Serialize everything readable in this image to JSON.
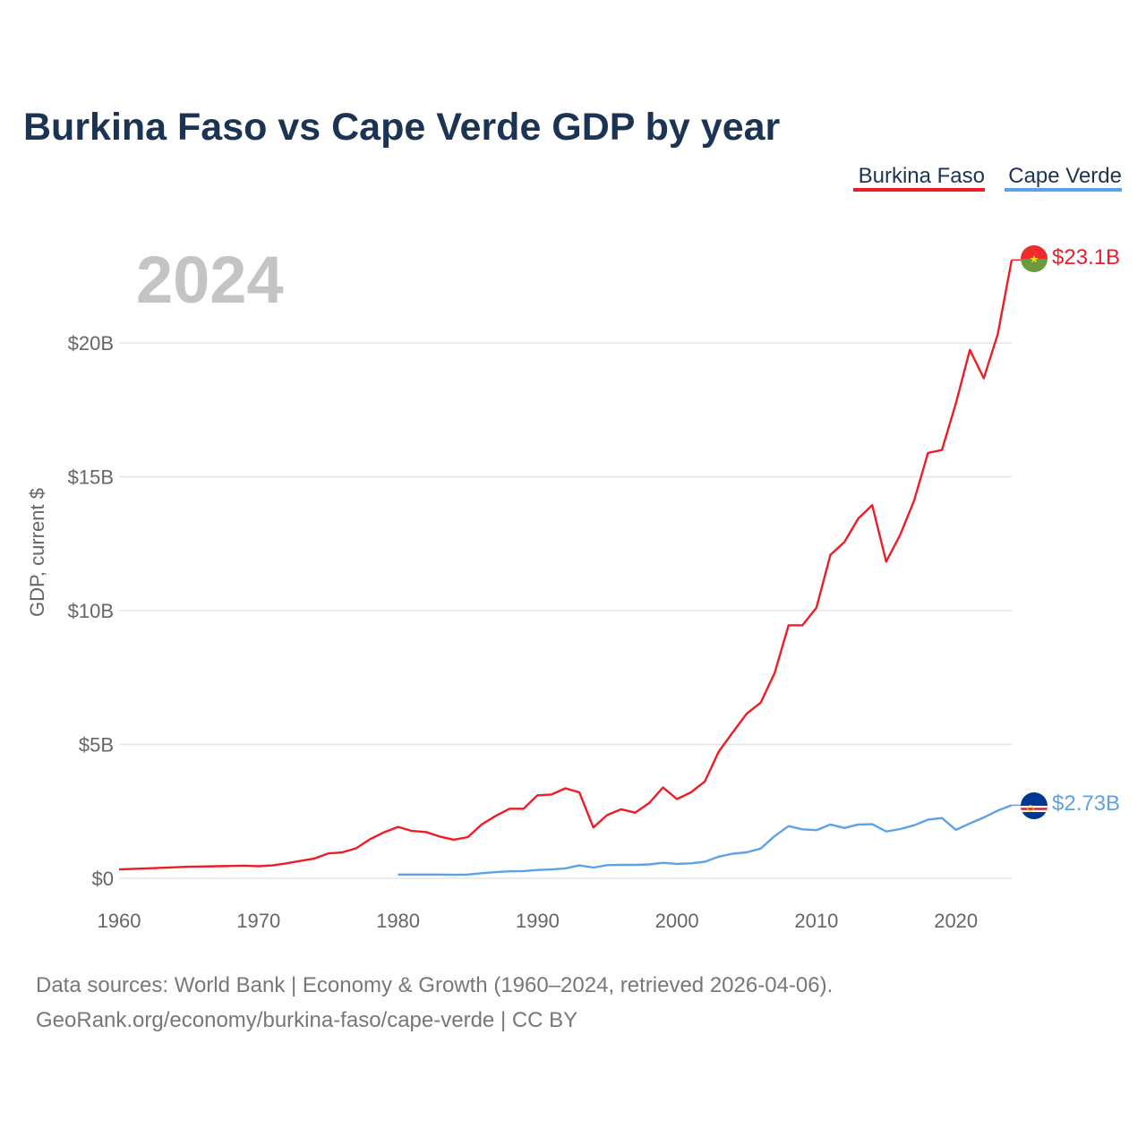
{
  "colors": {
    "burkina": "#ee1c25",
    "cape": "#5ba3e4",
    "title": "#1c3454"
  },
  "chart_data": {
    "type": "line",
    "title": "Burkina Faso vs Cape Verde GDP by year",
    "xlabel": "",
    "ylabel": "GDP, current $",
    "current_year": "2024",
    "xlim": [
      1960,
      2024
    ],
    "ylim": [
      0,
      23.1
    ],
    "x_ticks": [
      1960,
      1970,
      1980,
      1990,
      2000,
      2010,
      2020
    ],
    "x_tick_labels": [
      "1960",
      "1970",
      "1980",
      "1990",
      "2000",
      "2010",
      "2020"
    ],
    "y_ticks": [
      0,
      5,
      10,
      15,
      20
    ],
    "y_tick_labels": [
      "$0",
      "$5B",
      "$10B",
      "$15B",
      "$20B"
    ],
    "units": "billions of current US$",
    "series": [
      {
        "name": "Burkina Faso",
        "color": "#ee1c25",
        "end_label": "$23.1B",
        "x": [
          1960,
          1961,
          1962,
          1963,
          1964,
          1965,
          1966,
          1967,
          1968,
          1969,
          1970,
          1971,
          1972,
          1973,
          1974,
          1975,
          1976,
          1977,
          1978,
          1979,
          1980,
          1981,
          1982,
          1983,
          1984,
          1985,
          1986,
          1987,
          1988,
          1989,
          1990,
          1991,
          1992,
          1993,
          1994,
          1995,
          1996,
          1997,
          1998,
          1999,
          2000,
          2001,
          2002,
          2003,
          2004,
          2005,
          2006,
          2007,
          2008,
          2009,
          2010,
          2011,
          2012,
          2013,
          2014,
          2015,
          2016,
          2017,
          2018,
          2019,
          2020,
          2021,
          2022,
          2023,
          2024
        ],
        "values": [
          0.33,
          0.35,
          0.37,
          0.39,
          0.41,
          0.43,
          0.44,
          0.45,
          0.46,
          0.47,
          0.45,
          0.48,
          0.56,
          0.65,
          0.74,
          0.93,
          0.97,
          1.12,
          1.46,
          1.72,
          1.92,
          1.77,
          1.73,
          1.56,
          1.44,
          1.54,
          2.01,
          2.33,
          2.6,
          2.6,
          3.1,
          3.13,
          3.36,
          3.21,
          1.9,
          2.36,
          2.58,
          2.45,
          2.81,
          3.39,
          2.96,
          3.21,
          3.62,
          4.74,
          5.45,
          6.15,
          6.56,
          7.67,
          9.45,
          9.45,
          10.11,
          12.08,
          12.56,
          13.44,
          13.94,
          11.83,
          12.83,
          14.11,
          15.89,
          16.0,
          17.75,
          19.74,
          18.68,
          20.32,
          23.1
        ]
      },
      {
        "name": "Cape Verde",
        "color": "#5ba3e4",
        "end_label": "$2.73B",
        "x": [
          1980,
          1981,
          1982,
          1983,
          1984,
          1985,
          1986,
          1987,
          1988,
          1989,
          1990,
          1991,
          1992,
          1993,
          1994,
          1995,
          1996,
          1997,
          1998,
          1999,
          2000,
          2001,
          2002,
          2003,
          2004,
          2005,
          2006,
          2007,
          2008,
          2009,
          2010,
          2011,
          2012,
          2013,
          2014,
          2015,
          2016,
          2017,
          2018,
          2019,
          2020,
          2021,
          2022,
          2023,
          2024
        ],
        "values": [
          0.14,
          0.14,
          0.14,
          0.14,
          0.13,
          0.14,
          0.19,
          0.23,
          0.26,
          0.27,
          0.31,
          0.33,
          0.37,
          0.48,
          0.4,
          0.49,
          0.5,
          0.5,
          0.52,
          0.58,
          0.54,
          0.56,
          0.62,
          0.81,
          0.92,
          0.97,
          1.11,
          1.58,
          1.95,
          1.83,
          1.8,
          2.01,
          1.88,
          2.01,
          2.02,
          1.75,
          1.84,
          1.98,
          2.19,
          2.25,
          1.81,
          2.05,
          2.27,
          2.53,
          2.73
        ]
      }
    ],
    "legend": [
      "Burkina Faso",
      "Cape Verde"
    ],
    "legend_position": "top-right"
  },
  "source": {
    "line1": "Data sources: World Bank | Economy & Growth (1960–2024, retrieved 2026-04-06).",
    "line2": "GeoRank.org/economy/burkina-faso/cape-verde | CC BY"
  }
}
